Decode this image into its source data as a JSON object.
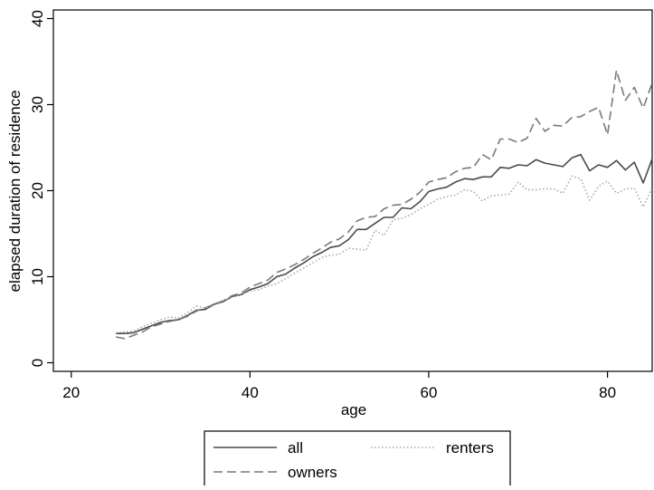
{
  "chart_data": {
    "type": "line",
    "title": "",
    "xlabel": "age",
    "ylabel": "elapsed duration of residence",
    "xlim": [
      18,
      85
    ],
    "ylim": [
      -1,
      41
    ],
    "xticks": [
      20,
      40,
      60,
      80
    ],
    "yticks": [
      0,
      10,
      20,
      30,
      40
    ],
    "grid": false,
    "legend_position": "bottom",
    "x": [
      25,
      26,
      27,
      28,
      29,
      30,
      31,
      32,
      33,
      34,
      35,
      36,
      37,
      38,
      39,
      40,
      41,
      42,
      43,
      44,
      45,
      46,
      47,
      48,
      49,
      50,
      51,
      52,
      53,
      54,
      55,
      56,
      57,
      58,
      59,
      60,
      61,
      62,
      63,
      64,
      65,
      66,
      67,
      68,
      69,
      70,
      71,
      72,
      73,
      74,
      75,
      76,
      77,
      78,
      79,
      80,
      81,
      82,
      83,
      84,
      85
    ],
    "series": [
      {
        "name": "all",
        "color": "#4a4a4a",
        "style": "solid",
        "values": [
          3.4,
          3.4,
          3.5,
          3.9,
          4.3,
          4.7,
          4.9,
          5.0,
          5.5,
          6.1,
          6.2,
          6.8,
          7.1,
          7.7,
          7.9,
          8.5,
          8.8,
          9.2,
          10.0,
          10.3,
          11.0,
          11.6,
          12.3,
          12.8,
          13.4,
          13.6,
          14.3,
          15.5,
          15.5,
          16.2,
          16.9,
          16.9,
          18.0,
          17.9,
          18.7,
          19.9,
          20.2,
          20.4,
          21.0,
          21.4,
          21.3,
          21.6,
          21.6,
          22.7,
          22.6,
          23.0,
          22.9,
          23.6,
          23.2,
          23.0,
          22.8,
          23.8,
          24.2,
          22.3,
          23.0,
          22.7,
          23.5,
          22.4,
          23.3,
          20.9,
          23.7
        ]
      },
      {
        "name": "owners",
        "color": "#7a7a7a",
        "style": "dashed",
        "values": [
          3.0,
          2.8,
          3.2,
          3.6,
          4.2,
          4.5,
          4.8,
          5.0,
          5.4,
          6.0,
          6.4,
          6.8,
          7.2,
          7.8,
          8.1,
          8.8,
          9.2,
          9.6,
          10.5,
          10.9,
          11.4,
          12.0,
          12.7,
          13.3,
          14.0,
          14.4,
          15.2,
          16.5,
          16.9,
          17.0,
          17.9,
          18.3,
          18.4,
          19.0,
          19.8,
          21.0,
          21.3,
          21.5,
          22.2,
          22.6,
          22.7,
          24.2,
          23.6,
          26.0,
          26.0,
          25.6,
          26.1,
          28.4,
          26.9,
          27.6,
          27.5,
          28.5,
          28.6,
          29.2,
          29.7,
          26.5,
          34.0,
          30.5,
          32.0,
          29.6,
          32.5
        ]
      },
      {
        "name": "renters",
        "color": "#a8a8a8",
        "style": "dotted",
        "values": [
          3.5,
          3.6,
          3.7,
          4.2,
          4.6,
          5.0,
          5.3,
          5.2,
          5.8,
          6.6,
          6.3,
          6.9,
          7.2,
          7.6,
          8.0,
          8.3,
          8.5,
          8.9,
          9.2,
          9.8,
          10.4,
          11.0,
          11.6,
          12.2,
          12.5,
          12.6,
          13.3,
          13.2,
          13.1,
          15.4,
          14.8,
          16.6,
          16.8,
          17.2,
          17.9,
          18.4,
          19.0,
          19.3,
          19.5,
          20.1,
          19.9,
          18.8,
          19.4,
          19.5,
          19.6,
          21.0,
          20.1,
          20.1,
          20.2,
          20.2,
          19.7,
          21.7,
          21.4,
          18.9,
          20.5,
          21.1,
          19.7,
          20.2,
          20.3,
          18.1,
          20.4
        ]
      }
    ],
    "legend": [
      {
        "label": "all",
        "style": "solid",
        "color": "#4a4a4a"
      },
      {
        "label": "renters",
        "style": "dotted",
        "color": "#a8a8a8"
      },
      {
        "label": "owners",
        "style": "dashed",
        "color": "#7a7a7a"
      }
    ]
  }
}
